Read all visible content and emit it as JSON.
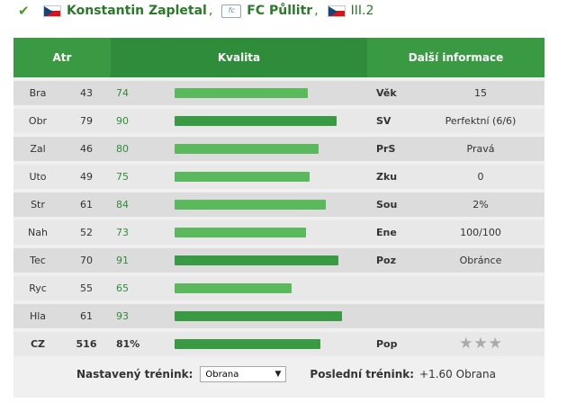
{
  "header": {
    "player_name": "Konstantin Zapletal",
    "team_name": "FC Půllitr",
    "league": "III.2",
    "separator": ","
  },
  "table": {
    "col_attr": "Atr",
    "col_quality": "Kvalita",
    "col_info": "Další informace",
    "rows": [
      {
        "attr": "Bra",
        "value": "43",
        "quality": "74",
        "info_key": "Věk",
        "info_value": "15"
      },
      {
        "attr": "Obr",
        "value": "79",
        "quality": "90",
        "info_key": "SV",
        "info_value": "Perfektní (6/6)"
      },
      {
        "attr": "Zal",
        "value": "46",
        "quality": "80",
        "info_key": "PrS",
        "info_value": "Pravá"
      },
      {
        "attr": "Uto",
        "value": "49",
        "quality": "75",
        "info_key": "Zku",
        "info_value": "0"
      },
      {
        "attr": "Str",
        "value": "61",
        "quality": "84",
        "info_key": "Sou",
        "info_value": "2%"
      },
      {
        "attr": "Nah",
        "value": "52",
        "quality": "73",
        "info_key": "Ene",
        "info_value": "100/100"
      },
      {
        "attr": "Tec",
        "value": "70",
        "quality": "91",
        "info_key": "Poz",
        "info_value": "Obránce"
      },
      {
        "attr": "Ryc",
        "value": "55",
        "quality": "65",
        "info_key": "",
        "info_value": ""
      },
      {
        "attr": "Hla",
        "value": "61",
        "quality": "93",
        "info_key": "",
        "info_value": ""
      }
    ],
    "total": {
      "attr": "CZ",
      "value": "516",
      "quality": "81%",
      "info_key": "Pop",
      "stars": 3
    }
  },
  "footer": {
    "training_label": "Nastavený trénink:",
    "training_value": "Obrana",
    "last_label": "Poslední trénink:",
    "last_value": "+1.60 Obrana"
  },
  "colors": {
    "accent": "#3a9a44",
    "header_dark": "#2f8c3a",
    "link": "#2a7a2a"
  }
}
